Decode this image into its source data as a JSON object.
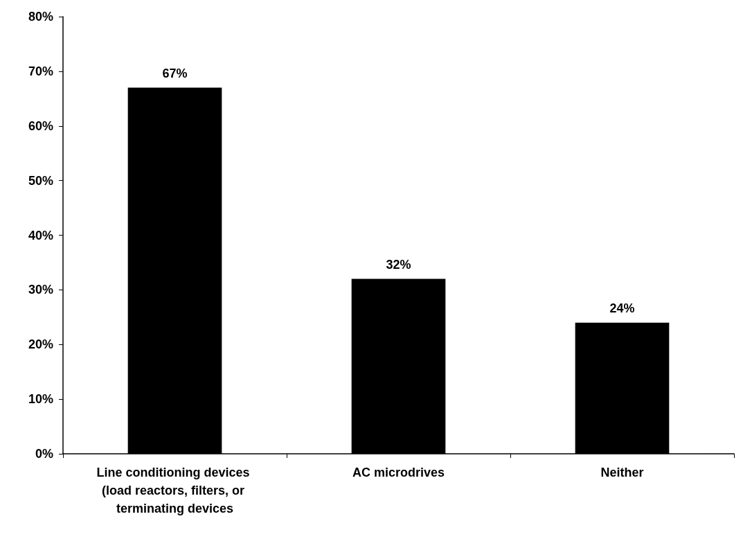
{
  "chart_data": {
    "type": "bar",
    "categories": [
      "Line conditioning devices (load reactors, filters, or terminating devices",
      "AC microdrives",
      "Neither"
    ],
    "values": [
      67,
      32,
      24
    ],
    "color": "#000000",
    "value_labels": [
      "67%",
      "32%",
      "24%"
    ],
    "ylim": [
      0,
      80
    ],
    "yticks": [
      {
        "value": 0,
        "label": "0%"
      },
      {
        "value": 10,
        "label": "10%"
      },
      {
        "value": 20,
        "label": "20%"
      },
      {
        "value": 30,
        "label": "30%"
      },
      {
        "value": 40,
        "label": "40%"
      },
      {
        "value": 50,
        "label": "50%"
      },
      {
        "value": 60,
        "label": "60%"
      },
      {
        "value": 70,
        "label": "70%"
      },
      {
        "value": 80,
        "label": "80%"
      }
    ],
    "grid": false
  }
}
